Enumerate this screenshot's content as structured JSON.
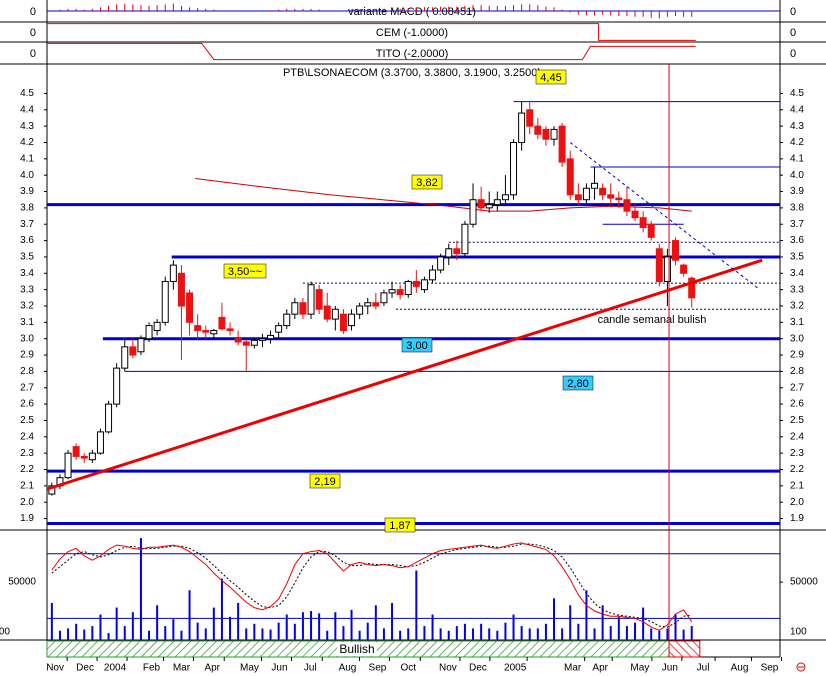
{
  "chart_data": {
    "type": "candlestick",
    "title": "PTB\\LSONAECOM (3.3700, 3.3800, 3.1900, 3.2500)",
    "xlim": [
      -0.6,
      89.9
    ],
    "ylim": [
      1.83,
      4.68
    ],
    "yticks": [
      1.9,
      {
        "value": 2.0,
        "label": "2.0"
      },
      2.1,
      2.2,
      2.3,
      2.4,
      2.5,
      2.6,
      2.7,
      2.8,
      2.9,
      {
        "value": 3.0,
        "label": "3.0"
      },
      3.1,
      3.2,
      3.3,
      3.4,
      3.5,
      3.6,
      3.7,
      3.8,
      3.9,
      {
        "value": 4.0,
        "label": "4.0"
      },
      4.1,
      4.2,
      4.3,
      4.4,
      4.5
    ],
    "xticks": [
      {
        "value": 0.4,
        "label": "Nov"
      },
      {
        "value": 4.1,
        "label": "Dec"
      },
      {
        "value": 7.8,
        "label": "2004"
      },
      {
        "value": 12.3,
        "label": "Feb"
      },
      {
        "value": 16,
        "label": "Mar"
      },
      {
        "value": 19.8,
        "label": "Apr"
      },
      {
        "value": 24.4,
        "label": "May"
      },
      {
        "value": 28.1,
        "label": "Jun"
      },
      {
        "value": 31.9,
        "label": "Jul"
      },
      {
        "value": 36.5,
        "label": "Aug"
      },
      {
        "value": 40.2,
        "label": "Sep"
      },
      {
        "value": 44,
        "label": "Oct"
      },
      {
        "value": 48.9,
        "label": "Nov"
      },
      {
        "value": 52.6,
        "label": "Dec"
      },
      {
        "value": 57.2,
        "label": "2005"
      },
      {
        "value": 64.3,
        "label": "Mar"
      },
      {
        "value": 67.7,
        "label": "Apr"
      },
      {
        "value": 72.6,
        "label": "May"
      },
      {
        "value": 76.3,
        "label": "Jun"
      },
      {
        "value": 80.4,
        "label": "Jul"
      },
      {
        "value": 84.9,
        "label": "Aug"
      },
      {
        "value": 88.6,
        "label": "Sep"
      }
    ],
    "up_color": "#ffffff",
    "down_color": "#ee1111",
    "ohlc": [
      [
        2.05,
        2.12,
        2.04,
        2.1
      ],
      [
        2.1,
        2.17,
        2.08,
        2.15
      ],
      [
        2.15,
        2.32,
        2.14,
        2.3
      ],
      [
        2.34,
        2.36,
        2.26,
        2.28
      ],
      [
        2.28,
        2.3,
        2.24,
        2.27
      ],
      [
        2.26,
        2.32,
        2.24,
        2.3
      ],
      [
        2.3,
        2.45,
        2.29,
        2.43
      ],
      [
        2.43,
        2.62,
        2.42,
        2.6
      ],
      [
        2.6,
        2.85,
        2.58,
        2.82
      ],
      [
        2.82,
        3.0,
        2.8,
        2.95
      ],
      [
        2.95,
        3.0,
        2.88,
        2.9
      ],
      [
        2.92,
        3.02,
        2.9,
        3.0
      ],
      [
        3.0,
        3.1,
        2.98,
        3.08
      ],
      [
        3.05,
        3.12,
        3.02,
        3.1
      ],
      [
        3.1,
        3.38,
        3.08,
        3.35
      ],
      [
        3.35,
        3.48,
        3.3,
        3.45
      ],
      [
        3.4,
        3.45,
        2.87,
        3.2
      ],
      [
        3.28,
        3.3,
        3.02,
        3.1
      ],
      [
        3.08,
        3.15,
        3.0,
        3.05
      ],
      [
        3.05,
        3.08,
        3.0,
        3.04
      ],
      [
        3.03,
        3.06,
        3.0,
        3.05
      ],
      [
        3.13,
        3.22,
        3.05,
        3.06
      ],
      [
        3.06,
        3.1,
        3.02,
        3.05
      ],
      [
        3.0,
        3.05,
        2.96,
        2.98
      ],
      [
        2.98,
        3.0,
        2.8,
        2.96
      ],
      [
        2.96,
        3.0,
        2.94,
        2.99
      ],
      [
        2.99,
        3.03,
        2.95,
        3.0
      ],
      [
        3.0,
        3.05,
        2.97,
        3.02
      ],
      [
        3.04,
        3.1,
        3.0,
        3.08
      ],
      [
        3.08,
        3.18,
        3.06,
        3.15
      ],
      [
        3.15,
        3.25,
        3.12,
        3.22
      ],
      [
        3.22,
        3.25,
        3.12,
        3.15
      ],
      [
        3.15,
        3.35,
        3.12,
        3.33
      ],
      [
        3.3,
        3.33,
        3.15,
        3.18
      ],
      [
        3.2,
        3.28,
        3.1,
        3.12
      ],
      [
        3.12,
        3.2,
        3.05,
        3.18
      ],
      [
        3.15,
        3.18,
        3.03,
        3.05
      ],
      [
        3.08,
        3.18,
        3.05,
        3.15
      ],
      [
        3.15,
        3.22,
        3.12,
        3.2
      ],
      [
        3.2,
        3.25,
        3.15,
        3.22
      ],
      [
        3.22,
        3.28,
        3.18,
        3.2
      ],
      [
        3.22,
        3.3,
        3.2,
        3.28
      ],
      [
        3.28,
        3.35,
        3.25,
        3.3
      ],
      [
        3.3,
        3.33,
        3.24,
        3.27
      ],
      [
        3.27,
        3.36,
        3.25,
        3.35
      ],
      [
        3.35,
        3.42,
        3.28,
        3.32
      ],
      [
        3.3,
        3.38,
        3.28,
        3.36
      ],
      [
        3.36,
        3.45,
        3.34,
        3.42
      ],
      [
        3.42,
        3.52,
        3.4,
        3.5
      ],
      [
        3.5,
        3.58,
        3.45,
        3.55
      ],
      [
        3.55,
        3.6,
        3.48,
        3.52
      ],
      [
        3.52,
        3.72,
        3.5,
        3.7
      ],
      [
        3.7,
        3.95,
        3.68,
        3.85
      ],
      [
        3.85,
        3.93,
        3.78,
        3.8
      ],
      [
        3.8,
        3.9,
        3.77,
        3.82
      ],
      [
        3.82,
        3.9,
        3.78,
        3.85
      ],
      [
        3.85,
        4.0,
        3.82,
        3.88
      ],
      [
        3.88,
        4.22,
        3.85,
        4.2
      ],
      [
        4.2,
        4.45,
        4.15,
        4.38
      ],
      [
        4.4,
        4.45,
        4.25,
        4.3
      ],
      [
        4.3,
        4.35,
        4.22,
        4.25
      ],
      [
        4.28,
        4.3,
        4.18,
        4.22
      ],
      [
        4.22,
        4.3,
        4.18,
        4.28
      ],
      [
        4.3,
        4.32,
        4.05,
        4.08
      ],
      [
        4.1,
        4.15,
        3.85,
        3.88
      ],
      [
        3.88,
        3.95,
        3.82,
        3.85
      ],
      [
        3.85,
        3.95,
        3.83,
        3.92
      ],
      [
        3.92,
        4.05,
        3.85,
        3.95
      ],
      [
        3.92,
        3.95,
        3.85,
        3.88
      ],
      [
        3.88,
        3.95,
        3.82,
        3.86
      ],
      [
        3.86,
        3.9,
        3.8,
        3.85
      ],
      [
        3.85,
        3.93,
        3.75,
        3.78
      ],
      [
        3.78,
        3.82,
        3.72,
        3.74
      ],
      [
        3.74,
        3.78,
        3.65,
        3.68
      ],
      [
        3.7,
        3.72,
        3.6,
        3.62
      ],
      [
        3.55,
        3.58,
        3.32,
        3.35
      ],
      [
        3.35,
        3.55,
        3.2,
        3.5
      ],
      [
        3.6,
        3.62,
        3.45,
        3.48
      ],
      [
        3.45,
        3.46,
        3.38,
        3.4
      ],
      [
        3.37,
        3.38,
        3.19,
        3.25
      ]
    ],
    "levels": [
      {
        "value": 4.45,
        "from": 57,
        "style": "thin",
        "label": "4,45",
        "label_color": "#ffff00"
      },
      {
        "value": 4.05,
        "from": 66.5,
        "style": "thin"
      },
      {
        "value": 3.82,
        "from": -0.6,
        "style": "thick",
        "label": "3,82",
        "label_color": "#ffff00"
      },
      {
        "value": 3.7,
        "from": 68,
        "to": 78,
        "style": "thin"
      },
      {
        "value": 3.59,
        "from": 49,
        "style": "dashed"
      },
      {
        "value": 3.5,
        "from": 14.8,
        "style": "thick",
        "label": "3,50~~",
        "label_color": "#ffff00"
      },
      {
        "value": 3.34,
        "from": 31,
        "style": "dashed"
      },
      {
        "value": 3.18,
        "from": 42.5,
        "style": "dashed"
      },
      {
        "value": 3.0,
        "from": 6.3,
        "style": "thick",
        "label": "3,00",
        "label_color": "#33ccff"
      },
      {
        "value": 2.8,
        "from": 9,
        "style": "thin",
        "label": "2,80",
        "label_color": "#33ccff"
      },
      {
        "value": 2.19,
        "from": -0.6,
        "style": "thick",
        "label": "2,19",
        "label_color": "#ffff00"
      },
      {
        "value": 1.87,
        "from": -0.6,
        "style": "thick",
        "label": "1,87",
        "label_color": "#ffff00"
      }
    ],
    "level_color": "#0000cc",
    "trendlines": [
      {
        "x": [
          -0.6,
          87.7
        ],
        "values": [
          2.08,
          3.48
        ],
        "color": "#ee0000",
        "width": 3
      },
      {
        "x": [
          64,
          87.4
        ],
        "values": [
          4.2,
          3.3
        ],
        "color": "#0000cc",
        "width": 1,
        "dashed": true
      }
    ],
    "moving_average": {
      "x": [
        17.7,
        25.7,
        34.3,
        43,
        49,
        54,
        59,
        64,
        69,
        75,
        79
      ],
      "values": [
        3.98,
        3.93,
        3.88,
        3.84,
        3.81,
        3.78,
        3.78,
        3.8,
        3.81,
        3.8,
        3.78
      ],
      "color": "#cc0000"
    },
    "vline": 76.2,
    "vline_color": "#dd0000",
    "annotation": "candle semanal bulish",
    "annotation_color": "#0000cc",
    "panels": [
      {
        "title": "variante MACD ( 0.08451)",
        "type": "histogram",
        "ylim": [
          -0.15,
          0.15
        ],
        "yticks": [
          0
        ],
        "grid": true,
        "color": "#ee0000",
        "values": [
          0.01,
          0.02,
          0.03,
          0.03,
          0.02,
          0.03,
          0.05,
          0.07,
          0.09,
          0.1,
          0.09,
          0.08,
          0.07,
          0.08,
          0.09,
          0.1,
          0.07,
          0.05,
          0.04,
          0.03,
          0.02,
          0.01,
          0.01,
          0,
          -0.01,
          -0.01,
          0,
          0.01,
          0.02,
          0.03,
          0.03,
          0.03,
          0.03,
          0.02,
          0.01,
          0.01,
          0.01,
          0.02,
          0.02,
          0.02,
          0.03,
          0.03,
          0.03,
          0.03,
          0.04,
          0.04,
          0.05,
          0.05,
          0.06,
          0.06,
          0.06,
          0.07,
          0.08,
          0.08,
          0.07,
          0.07,
          0.07,
          0.08,
          0.09,
          0.09,
          0.08,
          0.06,
          0.05,
          0.02,
          -0.02,
          -0.05,
          -0.06,
          -0.06,
          -0.05,
          -0.06,
          -0.07,
          -0.07,
          -0.08,
          -0.08,
          -0.09,
          -0.1,
          -0.08,
          -0.07,
          -0.08,
          -0.08
        ]
      },
      {
        "title": "CEM (-1.0000)",
        "type": "step",
        "ylim": [
          -1.2,
          1.2
        ],
        "yticks": [
          0
        ],
        "color": "#ee0000",
        "x": [
          -0.6,
          67.5,
          67.5,
          79.5
        ],
        "values": [
          1,
          1,
          -1,
          -1
        ]
      },
      {
        "title": "TITO (-2.0000)",
        "type": "step",
        "ylim": [
          -2.5,
          2.5
        ],
        "yticks": [
          0
        ],
        "color": "#ee0000",
        "x": [
          -0.6,
          18.5,
          20,
          65.5,
          66.5,
          79.5
        ],
        "values": [
          2.2,
          2.2,
          -1.5,
          -1.5,
          1.5,
          1.5
        ]
      }
    ],
    "volume": {
      "ylim": [
        0,
        95000
      ],
      "yticks": [
        50000
      ],
      "color": "#0000ee",
      "values": [
        32000,
        8000,
        10000,
        14000,
        9000,
        12000,
        22000,
        6000,
        28000,
        12000,
        24000,
        88000,
        8000,
        30000,
        12000,
        18000,
        8000,
        43000,
        15000,
        10000,
        28000,
        53000,
        20000,
        32000,
        10000,
        14000,
        10000,
        9000,
        15000,
        22000,
        14000,
        24000,
        25000,
        23000,
        8000,
        24000,
        12000,
        26000,
        8000,
        15000,
        30000,
        10000,
        32000,
        8000,
        10000,
        60000,
        12000,
        22000,
        10000,
        8000,
        12000,
        14000,
        10000,
        14000,
        10000,
        8000,
        15000,
        22000,
        12000,
        10000,
        10000,
        14000,
        36000,
        10000,
        30000,
        14000,
        43000,
        10000,
        30000,
        12000,
        20000,
        12000,
        15000,
        28000,
        10000,
        8000,
        10000,
        22000,
        9000,
        12000
      ]
    },
    "volume_scale_label": "100",
    "stochastic": {
      "ylim": [
        0,
        102
      ],
      "levels": [
        80,
        20
      ],
      "k_color": "#ee0000",
      "d_color": "#000000",
      "level_color": "#0000cc",
      "k": [
        65,
        75,
        82,
        85,
        78,
        74,
        78,
        84,
        88,
        87,
        85,
        84,
        86,
        86,
        87,
        88,
        86,
        82,
        76,
        70,
        62,
        55,
        49,
        42,
        35,
        30,
        28,
        31,
        38,
        52,
        70,
        80,
        82,
        83,
        80,
        72,
        64,
        70,
        72,
        70,
        69,
        70,
        69,
        67,
        68,
        72,
        76,
        80,
        83,
        84,
        85,
        86,
        87,
        88,
        86,
        85,
        87,
        89,
        90,
        88,
        86,
        84,
        78,
        68,
        56,
        42,
        32,
        27,
        24,
        22,
        22,
        21,
        20,
        17,
        12,
        9,
        14,
        24,
        28,
        17
      ],
      "d": [
        62,
        68,
        74,
        80,
        82,
        79,
        77,
        79,
        83,
        86,
        87,
        85,
        85,
        85,
        86,
        87,
        87,
        85,
        81,
        76,
        69,
        62,
        55,
        49,
        42,
        36,
        31,
        30,
        32,
        40,
        53,
        67,
        77,
        82,
        82,
        78,
        72,
        69,
        69,
        71,
        70,
        70,
        70,
        69,
        68,
        69,
        72,
        76,
        80,
        82,
        84,
        85,
        86,
        87,
        87,
        86,
        86,
        87,
        89,
        89,
        88,
        86,
        83,
        77,
        67,
        55,
        43,
        34,
        28,
        25,
        23,
        22,
        21,
        20,
        17,
        13,
        12,
        16,
        22,
        23
      ]
    },
    "signal": {
      "label": "Bullish",
      "colors": [
        "#2e9e2e",
        "#ee0000"
      ]
    }
  }
}
